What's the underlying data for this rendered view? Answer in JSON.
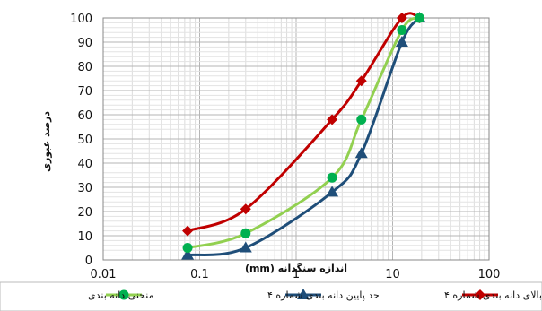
{
  "chart_data": {
    "type": "line",
    "x_scale": "log",
    "xlabel": "(mm) اندازه سنگدانه",
    "ylabel": "درصد عبوری",
    "xlim": [
      0.01,
      100
    ],
    "ylim": [
      0,
      100
    ],
    "x_ticks": [
      "0.01",
      "0.1",
      "1",
      "10",
      "100"
    ],
    "y_ticks": [
      "0",
      "10",
      "20",
      "30",
      "40",
      "50",
      "60",
      "70",
      "80",
      "90",
      "100"
    ],
    "grid": true,
    "legend_position": "bottom",
    "series": [
      {
        "name": "حد بالای دانه بندی شماره ۴",
        "color": "#c00000",
        "marker": "diamond",
        "x": [
          0.075,
          0.3,
          2.36,
          4.75,
          12.5,
          19
        ],
        "y": [
          12,
          21,
          58,
          74,
          100,
          100
        ]
      },
      {
        "name": "حد پایین دانه بندی شماره ۴",
        "color": "#1f4e79",
        "marker": "triangle",
        "x": [
          0.075,
          0.3,
          2.36,
          4.75,
          12.5,
          19
        ],
        "y": [
          2,
          5,
          28,
          44,
          90,
          100
        ]
      },
      {
        "name": "منحنی دانه بندی",
        "color": "#92d050",
        "marker_color": "#00b050",
        "marker": "circle",
        "x": [
          0.075,
          0.3,
          2.36,
          4.75,
          12.5,
          19
        ],
        "y": [
          5,
          11,
          34,
          58,
          95,
          100
        ]
      }
    ]
  }
}
